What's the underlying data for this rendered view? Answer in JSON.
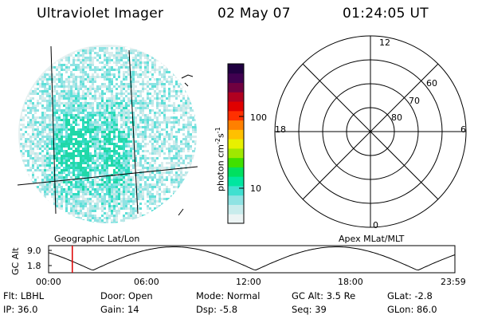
{
  "header": {
    "instrument": "Ultraviolet Imager",
    "date": "02 May 07",
    "time": "01:24:05 UT"
  },
  "colorbar": {
    "unit_label": "photon cm",
    "unit_sup1": "-2",
    "unit_mid": "s",
    "unit_sup2": "-1",
    "tick_labels": [
      "100",
      "10"
    ],
    "tick_values": [
      100,
      10
    ],
    "scale": "log",
    "colors": [
      "#ecf4f4",
      "#c8ecec",
      "#8fe3e3",
      "#40e0d0",
      "#00e6a0",
      "#00e060",
      "#40e000",
      "#a0e800",
      "#e8f000",
      "#ffc000",
      "#ff8000",
      "#ff3000",
      "#e00000",
      "#b00020",
      "#700040",
      "#400050",
      "#200040"
    ]
  },
  "polar_plot": {
    "label": "Apex MLat/MLT",
    "mlt_labels": {
      "top": "12",
      "right": "6",
      "bottom": "0",
      "left": "18"
    },
    "lat_labels": [
      "80",
      "70",
      "60"
    ]
  },
  "image_panel": {
    "label": "Geographic Lat/Lon"
  },
  "altitude_strip": {
    "y_axis_title": "GC Alt",
    "y_ticks": [
      "9.0",
      "1.8"
    ],
    "x_ticks": [
      "00:00",
      "06:00",
      "12:00",
      "18:00",
      "23:59"
    ],
    "current_time_marker_hours": 1.4,
    "marker_color": "#dd0000"
  },
  "footer": {
    "flt": "Flt: LBHL",
    "door": "Door: Open",
    "mode": "Mode: Normal",
    "gc_alt": "GC Alt: 3.5 Re",
    "glat": "GLat:  -2.8",
    "ip": "IP: 36.0",
    "gain": "Gain: 14",
    "dsp": "Dsp:   -5.8",
    "seq": "Seq: 39",
    "glon": "GLon:  86.0"
  }
}
